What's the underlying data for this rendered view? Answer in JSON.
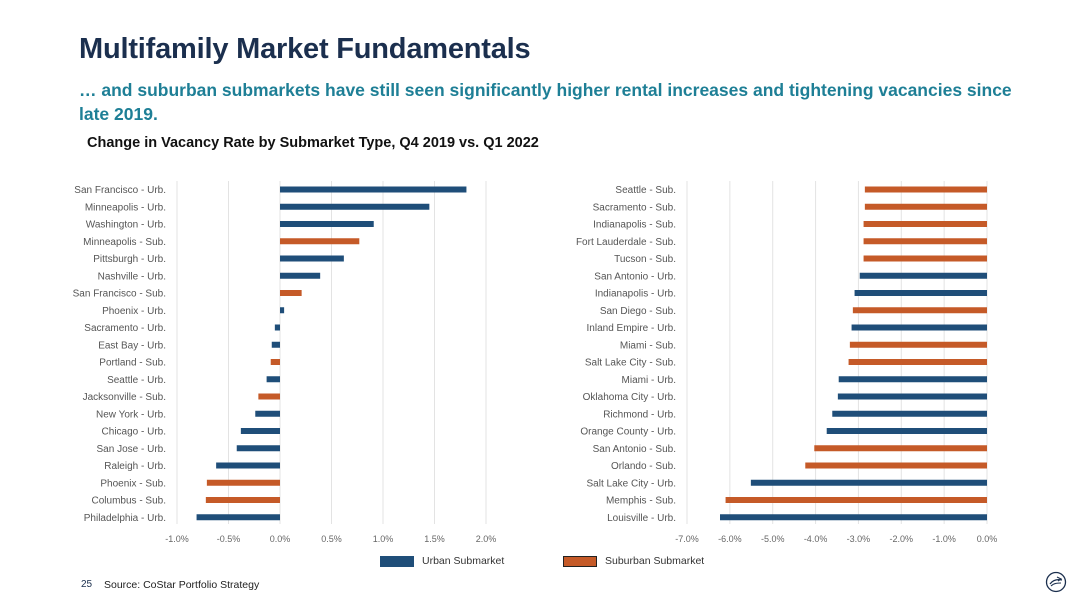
{
  "page": {
    "title": "Multifamily Market Fundamentals",
    "subtitle": "… and suburban submarkets have still seen significantly higher rental increases and tightening vacancies since late 2019.",
    "chart_title": "Change in Vacancy Rate by Submarket Type, Q4 2019 vs. Q1 2022",
    "legend": {
      "urban": "Urban Submarket",
      "suburban": "Suburban Submarket"
    },
    "page_number": "25",
    "source": "Source: CoStar Portfolio Strategy",
    "colors": {
      "urban": "#1f4e79",
      "suburban": "#c55a28",
      "title": "#1b2f4e",
      "subtitle": "#1e7f96"
    },
    "logo_icon": "company-logo-icon"
  },
  "chart_data": [
    {
      "type": "bar",
      "orientation": "horizontal",
      "title": "Change in Vacancy Rate by Submarket Type, Q4 2019 vs. Q1 2022",
      "xlim": [
        -0.01,
        0.02
      ],
      "xticks": [
        "-1.0%",
        "-0.5%",
        "0.0%",
        "0.5%",
        "1.0%",
        "1.5%",
        "2.0%"
      ],
      "grid": true,
      "categories": [
        "San Francisco - Urb.",
        "Minneapolis - Urb.",
        "Washington - Urb.",
        "Minneapolis - Sub.",
        "Pittsburgh - Urb.",
        "Nashville - Urb.",
        "San Francisco - Sub.",
        "Phoenix - Urb.",
        "Sacramento - Urb.",
        "East Bay - Urb.",
        "Portland - Sub.",
        "Seattle - Urb.",
        "Jacksonville - Sub.",
        "New York - Urb.",
        "Chicago - Urb.",
        "San Jose - Urb.",
        "Raleigh - Urb.",
        "Phoenix - Sub.",
        "Columbus - Sub.",
        "Philadelphia - Urb."
      ],
      "values": [
        0.0181,
        0.0145,
        0.0091,
        0.0077,
        0.0062,
        0.0039,
        0.0021,
        0.0004,
        -0.0005,
        -0.0008,
        -0.0009,
        -0.0013,
        -0.0021,
        -0.0024,
        -0.0038,
        -0.0042,
        -0.0062,
        -0.0071,
        -0.0072,
        -0.0081
      ],
      "types": [
        "urban",
        "urban",
        "urban",
        "suburban",
        "urban",
        "urban",
        "suburban",
        "urban",
        "urban",
        "urban",
        "suburban",
        "urban",
        "suburban",
        "urban",
        "urban",
        "urban",
        "urban",
        "suburban",
        "suburban",
        "urban"
      ]
    },
    {
      "type": "bar",
      "orientation": "horizontal",
      "xlim": [
        -0.07,
        0.0
      ],
      "xticks": [
        "-7.0%",
        "-6.0%",
        "-5.0%",
        "-4.0%",
        "-3.0%",
        "-2.0%",
        "-1.0%",
        "0.0%"
      ],
      "grid": true,
      "categories": [
        "Seattle - Sub.",
        "Sacramento - Sub.",
        "Indianapolis - Sub.",
        "Fort Lauderdale - Sub.",
        "Tucson - Sub.",
        "San Antonio - Urb.",
        "Indianapolis - Urb.",
        "San Diego - Sub.",
        "Inland Empire - Urb.",
        "Miami - Sub.",
        "Salt Lake City - Sub.",
        "Miami - Urb.",
        "Oklahoma City - Urb.",
        "Richmond - Urb.",
        "Orange County - Urb.",
        "San Antonio - Sub.",
        "Orlando - Sub.",
        "Salt Lake City - Urb.",
        "Memphis - Sub.",
        "Louisville - Urb."
      ],
      "values": [
        -0.0285,
        -0.0285,
        -0.0288,
        -0.0288,
        -0.0288,
        -0.0297,
        -0.0309,
        -0.0313,
        -0.0316,
        -0.032,
        -0.0323,
        -0.0346,
        -0.0348,
        -0.0361,
        -0.0374,
        -0.0403,
        -0.0424,
        -0.0551,
        -0.061,
        -0.0623
      ],
      "types": [
        "suburban",
        "suburban",
        "suburban",
        "suburban",
        "suburban",
        "urban",
        "urban",
        "suburban",
        "urban",
        "suburban",
        "suburban",
        "urban",
        "urban",
        "urban",
        "urban",
        "suburban",
        "suburban",
        "urban",
        "suburban",
        "urban"
      ]
    }
  ]
}
